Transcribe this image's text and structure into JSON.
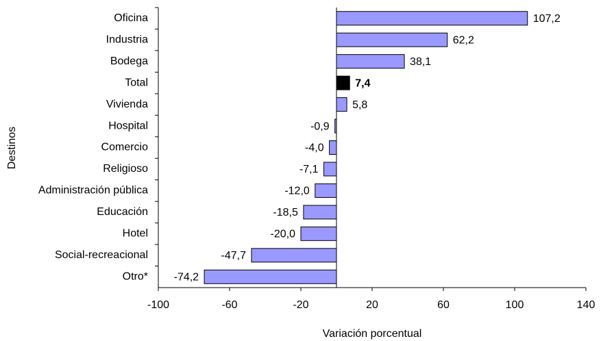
{
  "chart_data": {
    "type": "bar",
    "orientation": "horizontal",
    "x_label": "Variación porcentual",
    "y_label": "Destinos",
    "categories": [
      "Oficina",
      "Industria",
      "Bodega",
      "Total",
      "Vivienda",
      "Hospital",
      "Comercio",
      "Religioso",
      "Administración pública",
      "Educación",
      "Hotel",
      "Social-recreacional",
      "Otro*"
    ],
    "values": [
      107.2,
      62.2,
      38.1,
      7.4,
      5.8,
      -0.9,
      -4.0,
      -7.1,
      -12.0,
      -18.5,
      -20.0,
      -47.7,
      -74.2
    ],
    "value_labels": [
      "107,2",
      "62,2",
      "38,1",
      "7,4",
      "5,8",
      "-0,9",
      "-4,0",
      "-7,1",
      "-12,0",
      "-18,5",
      "-20,0",
      "-47,7",
      "-74,2"
    ],
    "colors": [
      "#9999ff",
      "#9999ff",
      "#9999ff",
      "#000000",
      "#9999ff",
      "#9999ff",
      "#9999ff",
      "#9999ff",
      "#9999ff",
      "#9999ff",
      "#9999ff",
      "#9999ff",
      "#9999ff"
    ],
    "value_label_weights": [
      "normal",
      "normal",
      "normal",
      "bold",
      "normal",
      "normal",
      "normal",
      "normal",
      "normal",
      "normal",
      "normal",
      "normal",
      "normal"
    ],
    "xlim": [
      -100,
      140
    ],
    "xticks": [
      -100,
      -60,
      -20,
      20,
      60,
      100,
      140
    ]
  }
}
